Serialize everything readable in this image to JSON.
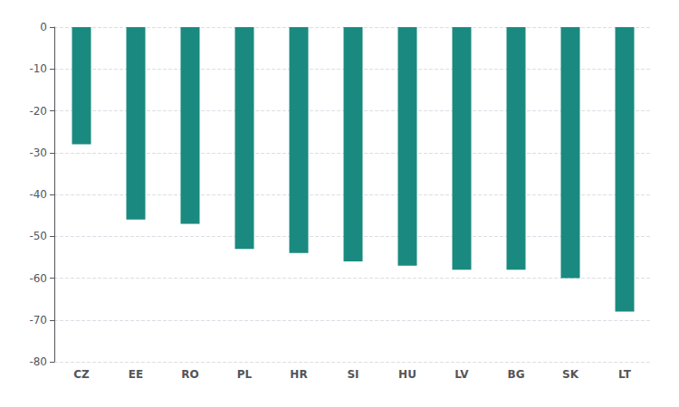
{
  "chart_data": {
    "type": "bar",
    "categories": [
      "CZ",
      "EE",
      "RO",
      "PL",
      "HR",
      "SI",
      "HU",
      "LV",
      "BG",
      "SK",
      "LT"
    ],
    "values": [
      -28,
      -46,
      -47,
      -53,
      -54,
      -56,
      -57,
      -58,
      -58,
      -60,
      -68
    ],
    "color": "#1a8a80",
    "ylim": [
      -80,
      0
    ],
    "yticks": [
      0,
      -10,
      -20,
      -30,
      -40,
      -50,
      -60,
      -70,
      -80
    ],
    "grid": true
  }
}
